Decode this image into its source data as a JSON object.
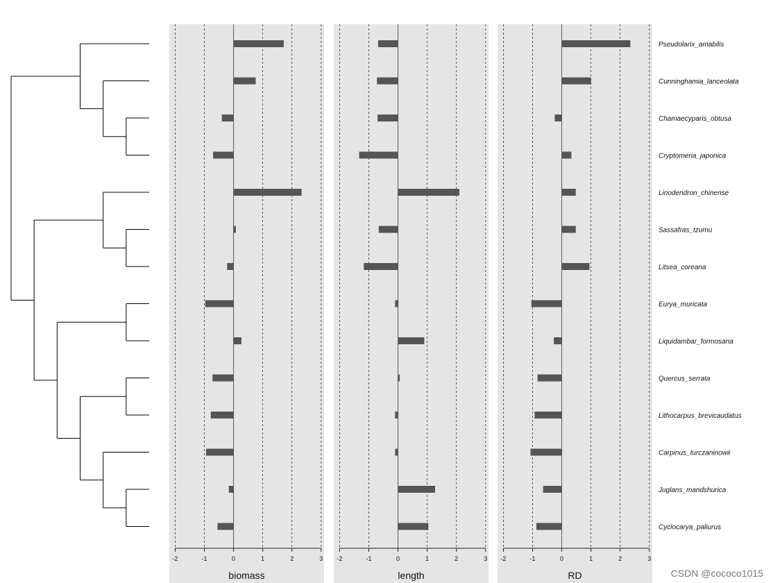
{
  "chart_data": {
    "type": "bar",
    "orientation": "horizontal",
    "grid": true,
    "categories": [
      "Pseudolarix_amabilis",
      "Cunninghamia_lanceolata",
      "Chamaecyparis_obtusa",
      "Cryptomeria_japonica",
      "Liriodendron_chinense",
      "Sassafras_tzumu",
      "Litsea_coreana",
      "Eurya_muricata",
      "Liquidambar_formosana",
      "Quercus_serrata",
      "Lithocarpus_brevicaudatus",
      "Carpinus_turczaninowii",
      "Juglans_mandshurica",
      "Cyclocarya_paliurus"
    ],
    "xlim": [
      -2.2,
      3.1
    ],
    "xticks": [
      -2,
      -1,
      0,
      1,
      2,
      3
    ],
    "xtick_labels": [
      "-2",
      "-1",
      "0",
      "1",
      "2",
      "3"
    ],
    "bar_color": "#555555",
    "panel_bg": "#e5e5e5",
    "series": [
      {
        "name": "biomass",
        "values": [
          1.72,
          0.76,
          -0.4,
          -0.7,
          2.33,
          0.08,
          -0.22,
          -0.97,
          0.27,
          -0.72,
          -0.78,
          -0.94,
          -0.16,
          -0.55
        ]
      },
      {
        "name": "length",
        "values": [
          -0.68,
          -0.72,
          -0.7,
          -1.33,
          2.1,
          -0.66,
          -1.17,
          -0.1,
          0.9,
          0.06,
          -0.1,
          -0.1,
          1.27,
          1.04
        ]
      },
      {
        "name": "RD",
        "values": [
          2.35,
          1.0,
          -0.24,
          0.33,
          0.48,
          0.48,
          0.95,
          -1.04,
          -0.27,
          -0.83,
          -0.93,
          -1.07,
          -0.64,
          -0.87
        ]
      }
    ],
    "dendrogram": {
      "leaves": [
        "Pseudolarix_amabilis",
        "Cunninghamia_lanceolata",
        "Chamaecyparis_obtusa",
        "Cryptomeria_japonica",
        "Liriodendron_chinense",
        "Sassafras_tzumu",
        "Litsea_coreana",
        "Eurya_muricata",
        "Liquidambar_formosana",
        "Quercus_serrata",
        "Lithocarpus_brevicaudatus",
        "Carpinus_turczaninowii",
        "Juglans_mandshurica",
        "Cyclocarya_paliurus"
      ],
      "tree": [
        [
          "Pseudolarix_amabilis",
          [
            "Cunninghamia_lanceolata",
            [
              "Chamaecyparis_obtusa",
              "Cryptomeria_japonica"
            ]
          ]
        ],
        [
          [
            "Liriodendron_chinense",
            [
              "Sassafras_tzumu",
              "Litsea_coreana"
            ]
          ],
          [
            [
              "Eurya_muricata",
              "Liquidambar_formosana"
            ],
            [
              [
                "Quercus_serrata",
                "Lithocarpus_brevicaudatus"
              ],
              [
                "Carpinus_turczaninowii",
                [
                  "Juglans_mandshurica",
                  "Cyclocarya_paliurus"
                ]
              ]
            ]
          ]
        ]
      ]
    }
  },
  "watermark": "CSDN @cococo1015"
}
